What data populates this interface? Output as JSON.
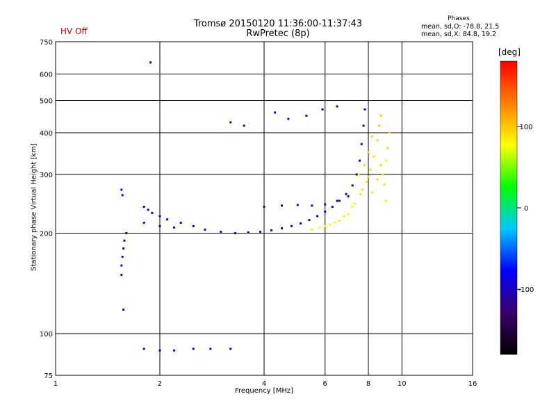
{
  "header": {
    "title_line1": "Tromsø 20150120 11:36:00-11:37:43",
    "title_line2": "RwPretec (8p)",
    "status": "HV Off",
    "phases_heading": "Phases",
    "phases_o": "mean, sd,O: -78.8, 21.5",
    "phases_x": "mean, sd,X:  84.8, 19.2"
  },
  "colors": {
    "status": "#cc0000",
    "colorbar": [
      "#000000",
      "#3a006a",
      "#0000ff",
      "#00c8ff",
      "#00ff00",
      "#ffff00",
      "#ff8000",
      "#ff0000"
    ]
  },
  "chart_data": {
    "type": "scatter",
    "xlabel": "Frequency [MHz]",
    "ylabel": "Stationary phase Virtual Height [km]",
    "x_scale": "log",
    "y_scale": "log",
    "xlim": [
      1,
      16
    ],
    "ylim": [
      75,
      750
    ],
    "x_ticks": [
      1,
      2,
      4,
      6,
      8,
      10,
      16
    ],
    "y_ticks": [
      75,
      100,
      200,
      300,
      400,
      500,
      600,
      750
    ],
    "grid": true,
    "colorbar": {
      "unit": "[deg]",
      "range": [
        -180,
        180
      ],
      "ticks": [
        100,
        0,
        -100
      ]
    },
    "series": [
      {
        "mode": "O",
        "points": [
          [
            1.55,
            150,
            -110
          ],
          [
            1.55,
            160,
            -115
          ],
          [
            1.56,
            170,
            -105
          ],
          [
            1.57,
            180,
            -120
          ],
          [
            1.58,
            190,
            -100
          ],
          [
            1.6,
            200,
            -110
          ],
          [
            1.55,
            270,
            -95
          ],
          [
            1.56,
            260,
            -100
          ],
          [
            1.57,
            118,
            -75
          ],
          [
            1.88,
            650,
            -110
          ],
          [
            1.8,
            240,
            -105
          ],
          [
            1.85,
            235,
            -95
          ],
          [
            1.9,
            230,
            -85
          ],
          [
            2.0,
            225,
            -90
          ],
          [
            2.1,
            220,
            -100
          ],
          [
            2.3,
            215,
            -85
          ],
          [
            2.5,
            210,
            -80
          ],
          [
            2.7,
            205,
            -95
          ],
          [
            3.0,
            202,
            -110
          ],
          [
            3.3,
            200,
            -100
          ],
          [
            3.6,
            201,
            -95
          ],
          [
            3.9,
            202,
            -110
          ],
          [
            4.2,
            204,
            -100
          ],
          [
            4.5,
            207,
            -105
          ],
          [
            4.8,
            210,
            -110
          ],
          [
            5.1,
            214,
            -100
          ],
          [
            5.4,
            219,
            -105
          ],
          [
            5.7,
            225,
            -110
          ],
          [
            6.0,
            232,
            -100
          ],
          [
            6.3,
            240,
            -105
          ],
          [
            6.6,
            250,
            -110
          ],
          [
            6.9,
            262,
            -100
          ],
          [
            7.2,
            278,
            -115
          ],
          [
            7.4,
            300,
            -120
          ],
          [
            7.55,
            330,
            -115
          ],
          [
            7.65,
            370,
            -110
          ],
          [
            7.75,
            420,
            -120
          ],
          [
            7.82,
            470,
            -110
          ],
          [
            1.8,
            215,
            -95
          ],
          [
            2.0,
            210,
            -90
          ],
          [
            2.2,
            208,
            -85
          ],
          [
            4.0,
            240,
            -110
          ],
          [
            4.5,
            242,
            -115
          ],
          [
            5.0,
            243,
            -110
          ],
          [
            5.5,
            242,
            -105
          ],
          [
            6.0,
            244,
            -115
          ],
          [
            6.5,
            250,
            -110
          ],
          [
            7.0,
            258,
            -115
          ],
          [
            3.2,
            430,
            -95
          ],
          [
            3.5,
            420,
            -100
          ],
          [
            4.3,
            460,
            -110
          ],
          [
            4.7,
            440,
            -105
          ],
          [
            5.3,
            450,
            -120
          ],
          [
            5.9,
            470,
            -115
          ],
          [
            6.5,
            480,
            -110
          ],
          [
            1.8,
            90,
            -90
          ],
          [
            2.0,
            89,
            -85
          ],
          [
            2.2,
            89,
            -80
          ],
          [
            2.5,
            90,
            -85
          ],
          [
            2.8,
            90,
            -90
          ],
          [
            3.2,
            90,
            -95
          ]
        ]
      },
      {
        "mode": "X",
        "points": [
          [
            6.0,
            210,
            80
          ],
          [
            6.4,
            215,
            75
          ],
          [
            6.8,
            225,
            85
          ],
          [
            7.2,
            240,
            80
          ],
          [
            7.6,
            262,
            90
          ],
          [
            7.9,
            285,
            85
          ],
          [
            8.1,
            310,
            95
          ],
          [
            8.3,
            340,
            90
          ],
          [
            8.5,
            380,
            95
          ],
          [
            8.6,
            420,
            100
          ],
          [
            8.7,
            450,
            95
          ],
          [
            7.5,
            300,
            85
          ],
          [
            7.8,
            320,
            90
          ],
          [
            8.0,
            350,
            95
          ],
          [
            8.2,
            390,
            90
          ],
          [
            8.8,
            300,
            85
          ],
          [
            8.9,
            280,
            90
          ],
          [
            9.0,
            330,
            80
          ],
          [
            9.1,
            360,
            95
          ],
          [
            9.2,
            400,
            90
          ],
          [
            5.5,
            205,
            70
          ],
          [
            5.8,
            208,
            75
          ],
          [
            6.2,
            212,
            80
          ],
          [
            6.6,
            218,
            85
          ],
          [
            7.0,
            228,
            80
          ],
          [
            7.3,
            245,
            85
          ],
          [
            7.7,
            270,
            90
          ],
          [
            8.0,
            295,
            95
          ],
          [
            8.2,
            265,
            85
          ],
          [
            8.5,
            290,
            90
          ],
          [
            8.7,
            320,
            95
          ],
          [
            9.0,
            250,
            85
          ]
        ]
      }
    ]
  }
}
